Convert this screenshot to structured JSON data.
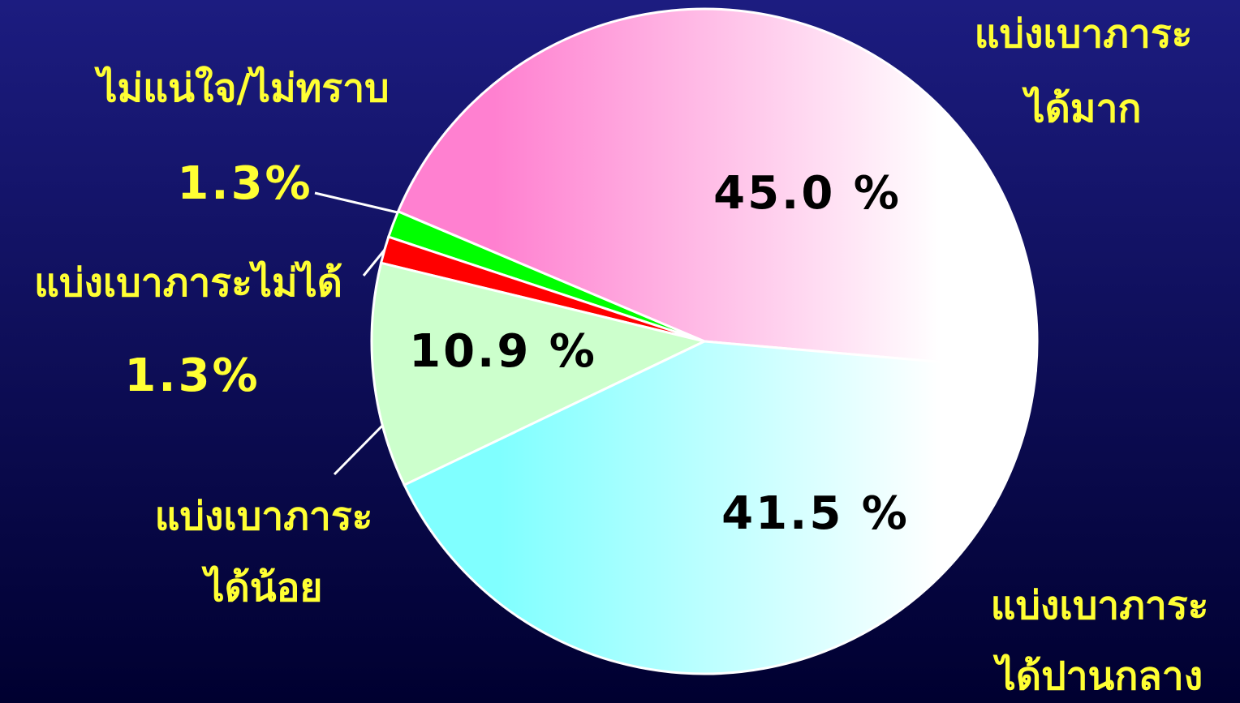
{
  "chart_data": {
    "type": "pie",
    "categories": [
      [
        "แบ่งเบาภาระ",
        "ได้มาก"
      ],
      [
        "ไม่แน่ใจ/ไม่ทราบ"
      ],
      [
        "แบ่งเบาภาระไม่ได้"
      ],
      [
        "แบ่งเบาภาระ",
        "ได้น้อย"
      ],
      [
        "แบ่งเบาภาระ",
        "ได้ปานกลาง"
      ]
    ],
    "values": [
      45.0,
      1.3,
      1.3,
      10.9,
      41.5
    ],
    "value_labels": [
      "45.0 %",
      "1.3%",
      "1.3%",
      "10.9 %",
      "41.5 %"
    ],
    "colors": [
      "#ff80d0",
      "#00ff00",
      "#ff0000",
      "#ccffcc",
      "#80ffff"
    ]
  }
}
